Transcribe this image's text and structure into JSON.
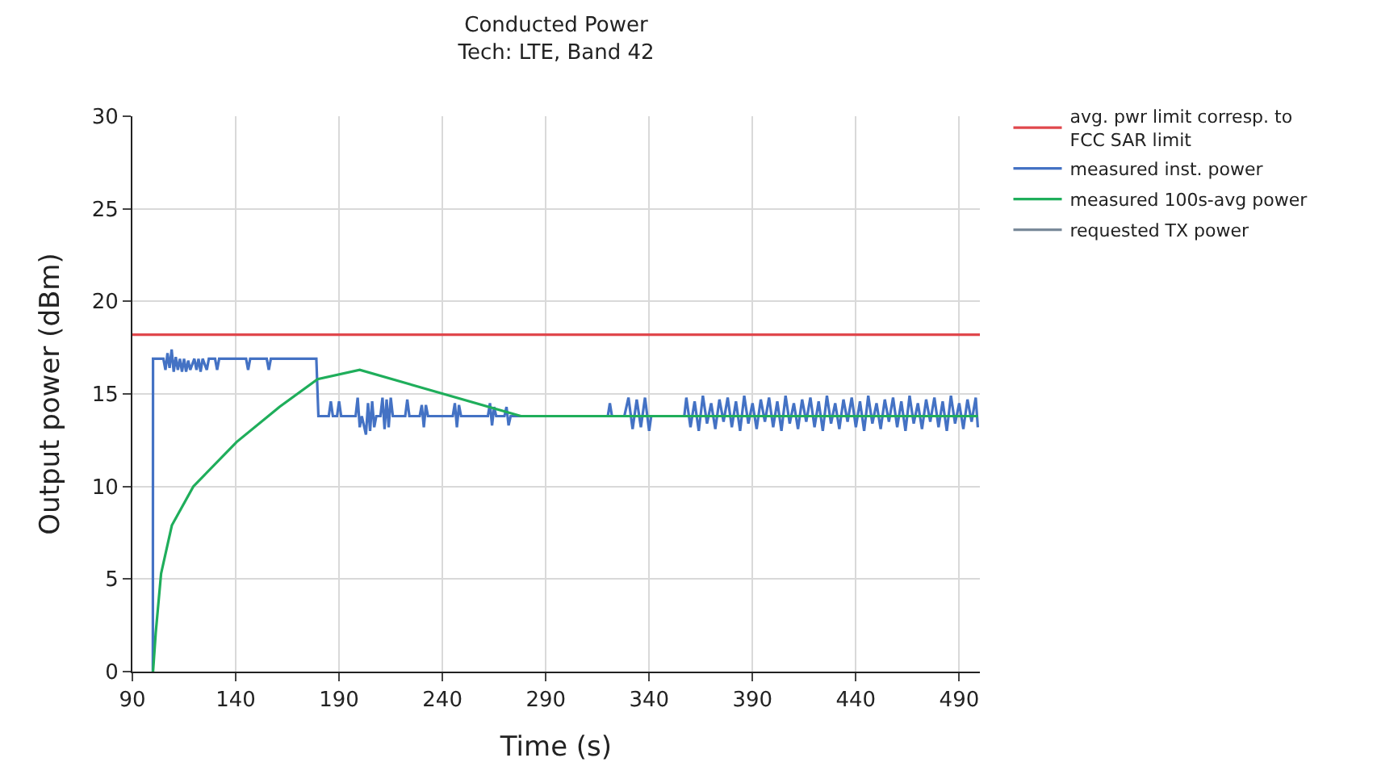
{
  "chart_data": {
    "type": "line",
    "title": "Conducted Power",
    "subtitle": "Tech: LTE, Band 42",
    "xlabel": "Time (s)",
    "ylabel": "Output power (dBm)",
    "xlim": [
      90,
      500
    ],
    "xticks": [
      90,
      140,
      190,
      240,
      290,
      340,
      390,
      440,
      490
    ],
    "ylim": [
      0,
      30
    ],
    "yticks": [
      0,
      5,
      10,
      15,
      20,
      25,
      30
    ],
    "grid": true,
    "legend": "top right",
    "marker": "none",
    "line_style": "solid",
    "series": [
      {
        "name": "avg. pwr limit corresp. to FCC SAR limit",
        "color": "#e0474c",
        "x": [
          90,
          500
        ],
        "values": [
          18.2,
          18.2
        ]
      },
      {
        "name": "measured inst. power",
        "color": "#4472c4",
        "x": [
          99.9,
          100,
          105,
          106,
          107,
          108,
          109,
          110,
          111,
          112,
          113,
          114,
          115,
          116,
          117,
          118,
          120,
          121,
          122,
          123,
          124,
          126,
          127,
          130,
          131,
          132,
          145,
          146,
          147,
          155,
          156,
          157,
          179,
          180,
          185,
          186,
          187,
          189,
          190,
          191,
          198,
          199,
          200,
          201,
          203,
          204,
          205,
          206,
          207,
          208,
          210,
          211,
          212,
          213,
          214,
          215,
          216,
          222,
          223,
          224,
          229,
          230,
          231,
          232,
          233,
          245,
          246,
          247,
          248,
          249,
          262,
          263,
          264,
          265,
          266,
          270,
          271,
          272,
          273,
          320,
          321,
          322,
          328,
          330,
          332,
          334,
          336,
          338,
          340,
          341,
          357,
          358,
          360,
          362,
          364,
          366,
          368,
          370,
          372,
          374,
          376,
          378,
          380,
          382,
          384,
          386,
          388,
          390,
          392,
          394,
          396,
          398,
          400,
          402,
          404,
          406,
          408,
          410,
          412,
          414,
          416,
          418,
          420,
          422,
          424,
          426,
          428,
          430,
          432,
          434,
          436,
          438,
          440,
          442,
          444,
          446,
          448,
          450,
          452,
          454,
          456,
          458,
          460,
          462,
          464,
          466,
          468,
          470,
          472,
          474,
          476,
          478,
          480,
          482,
          484,
          486,
          488,
          490,
          492,
          494,
          496,
          498,
          499
        ],
        "values": [
          0,
          16.9,
          16.9,
          16.3,
          17.2,
          16.4,
          17.4,
          16.2,
          17.0,
          16.3,
          16.9,
          16.2,
          16.9,
          16.2,
          16.8,
          16.3,
          16.9,
          16.3,
          16.9,
          16.2,
          16.9,
          16.3,
          16.9,
          16.9,
          16.3,
          16.9,
          16.9,
          16.3,
          16.9,
          16.9,
          16.3,
          16.9,
          16.9,
          13.8,
          13.8,
          14.6,
          13.8,
          13.8,
          14.6,
          13.8,
          13.8,
          14.8,
          13.2,
          13.8,
          12.8,
          14.5,
          13.0,
          14.6,
          13.2,
          13.8,
          13.8,
          14.8,
          13.1,
          14.7,
          13.2,
          14.8,
          13.8,
          13.8,
          14.7,
          13.8,
          13.8,
          14.4,
          13.2,
          14.4,
          13.8,
          13.8,
          14.5,
          13.2,
          14.4,
          13.8,
          13.8,
          14.5,
          13.3,
          14.3,
          13.8,
          13.8,
          14.3,
          13.3,
          13.8,
          13.8,
          14.5,
          13.8,
          13.8,
          14.8,
          13.1,
          14.7,
          13.2,
          14.8,
          13.0,
          13.8,
          13.8,
          14.8,
          13.2,
          14.6,
          13.0,
          14.9,
          13.4,
          14.5,
          13.1,
          14.7,
          13.5,
          14.8,
          13.2,
          14.6,
          13.0,
          14.9,
          13.4,
          14.5,
          13.1,
          14.7,
          13.5,
          14.8,
          13.2,
          14.6,
          13.0,
          14.9,
          13.4,
          14.5,
          13.1,
          14.7,
          13.5,
          14.8,
          13.2,
          14.6,
          13.0,
          14.9,
          13.4,
          14.5,
          13.1,
          14.7,
          13.5,
          14.8,
          13.2,
          14.6,
          13.0,
          14.9,
          13.4,
          14.5,
          13.1,
          14.7,
          13.5,
          14.8,
          13.2,
          14.6,
          13.0,
          14.9,
          13.4,
          14.5,
          13.1,
          14.7,
          13.5,
          14.8,
          13.2,
          14.6,
          13.0,
          14.9,
          13.4,
          14.5,
          13.1,
          14.7,
          13.5,
          14.8,
          13.2
        ]
      },
      {
        "name": "measured 100s-avg power",
        "color": "#1fae5b",
        "x": [
          100,
          101.3,
          103.9,
          109.1,
          119.5,
          140.4,
          161.2,
          179.6,
          200,
          278,
          499
        ],
        "values": [
          0,
          2.1,
          5.3,
          7.9,
          10.0,
          12.4,
          14.3,
          15.8,
          16.3,
          13.8,
          13.8
        ]
      },
      {
        "name": "requested TX power",
        "color": "#7a8a9a"
      }
    ]
  }
}
